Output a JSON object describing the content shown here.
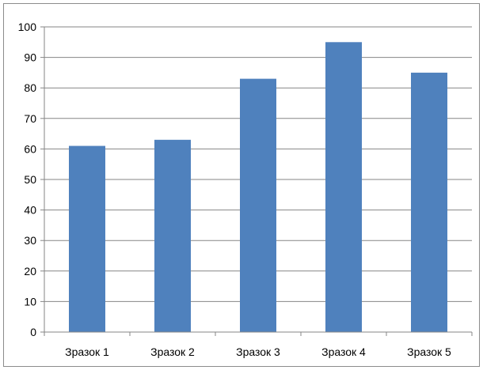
{
  "chart_data": {
    "type": "bar",
    "title": "",
    "xlabel": "",
    "ylabel": "",
    "categories": [
      "Зразок 1",
      "Зразок 2",
      "Зразок 3",
      "Зразок 4",
      "Зразок 5"
    ],
    "values": [
      61,
      63,
      83,
      95,
      85
    ],
    "ylim": [
      0,
      100
    ],
    "yticks": [
      "0",
      "10",
      "20",
      "30",
      "40",
      "50",
      "60",
      "70",
      "80",
      "90",
      "100"
    ],
    "grid": true,
    "legend": "none",
    "bar_color": "#4F81BD",
    "grid_color": "#868686"
  }
}
